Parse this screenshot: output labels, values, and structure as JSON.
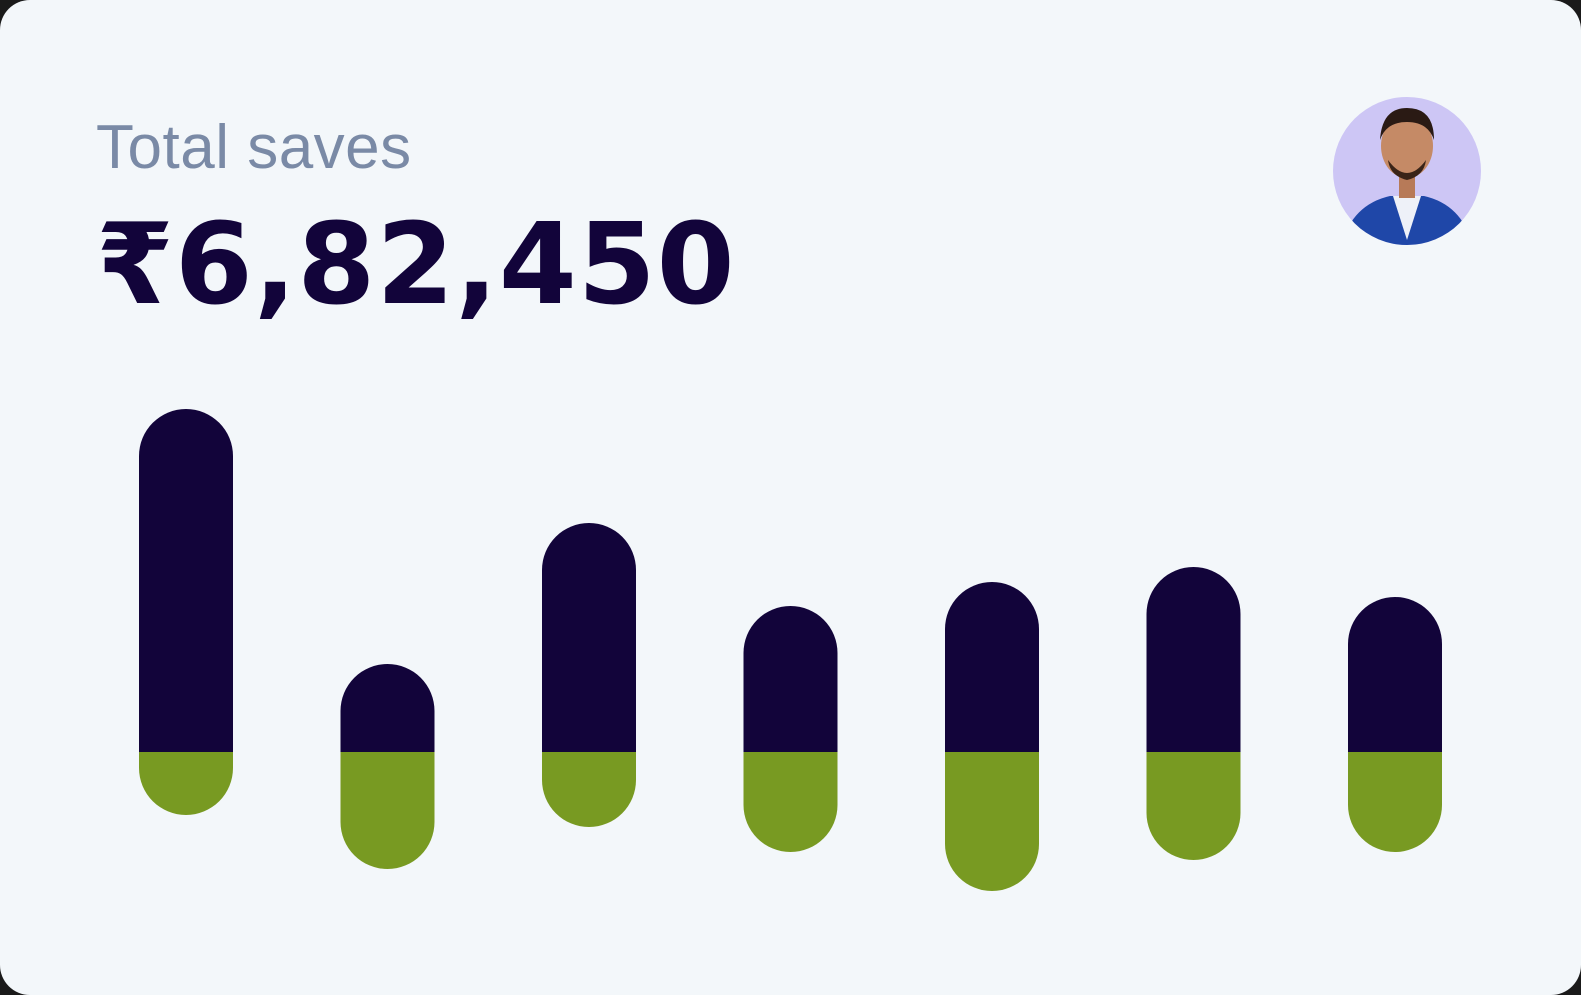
{
  "header": {
    "title": "Total saves",
    "amount": "₹6,82,450"
  },
  "chart_data": {
    "type": "bar",
    "series": [
      {
        "color": "#12043a",
        "values": [
          343,
          88,
          229,
          146,
          170,
          185,
          155
        ]
      },
      {
        "color": "#789a22",
        "values": [
          -63,
          -117,
          -75,
          -100,
          -139,
          -108,
          -100
        ]
      }
    ],
    "ylim": [
      -150,
      350
    ]
  }
}
